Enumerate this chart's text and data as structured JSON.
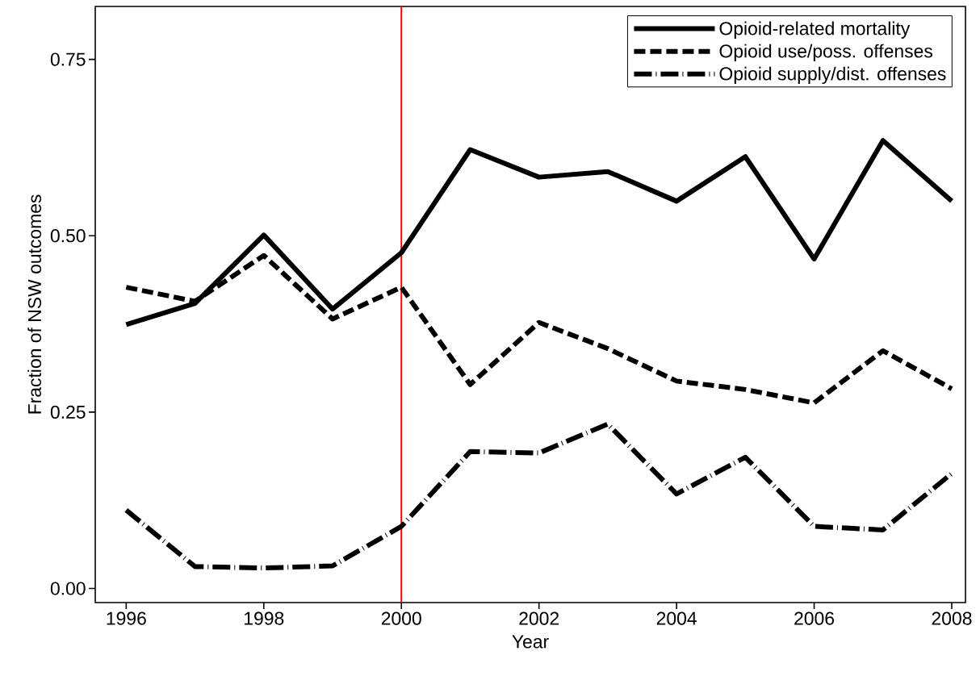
{
  "chart_data": {
    "type": "line",
    "xlabel": "Year",
    "ylabel": "Fraction of NSW outcomes",
    "x": [
      1996,
      1997,
      1998,
      1999,
      2000,
      2001,
      2002,
      2003,
      2004,
      2005,
      2006,
      2007,
      2008
    ],
    "series": [
      {
        "name": "Opioid-related mortality",
        "color": "#000000",
        "line_style": "solid",
        "values": [
          0.374,
          0.404,
          0.501,
          0.396,
          0.476,
          0.622,
          0.583,
          0.591,
          0.549,
          0.612,
          0.467,
          0.635,
          0.549
        ]
      },
      {
        "name": "Opioid use/poss. offenses",
        "color": "#000000",
        "line_style": "dashed",
        "values": [
          0.427,
          0.407,
          0.472,
          0.382,
          0.427,
          0.289,
          0.377,
          0.34,
          0.294,
          0.282,
          0.263,
          0.337,
          0.283
        ]
      },
      {
        "name": "Opioid supply/dist. offenses",
        "color": "#000000",
        "line_style": "dashdot",
        "values": [
          0.111,
          0.031,
          0.029,
          0.032,
          0.088,
          0.194,
          0.192,
          0.233,
          0.134,
          0.186,
          0.088,
          0.083,
          0.163
        ]
      }
    ],
    "xlim": [
      1995.55,
      2008.2
    ],
    "ylim": [
      -0.02,
      0.825
    ],
    "xticks": [
      1996,
      1998,
      2000,
      2002,
      2004,
      2006,
      2008
    ],
    "yticks": [
      {
        "value": 0,
        "label": "0.00"
      },
      {
        "value": 0.25,
        "label": "0.25"
      },
      {
        "value": 0.5,
        "label": "0.50"
      },
      {
        "value": 0.75,
        "label": "0.75"
      }
    ],
    "ref_lines": [
      {
        "axis": "x",
        "value": 2000,
        "color": "#ff0000"
      }
    ],
    "grid": false,
    "legend": "top right"
  }
}
